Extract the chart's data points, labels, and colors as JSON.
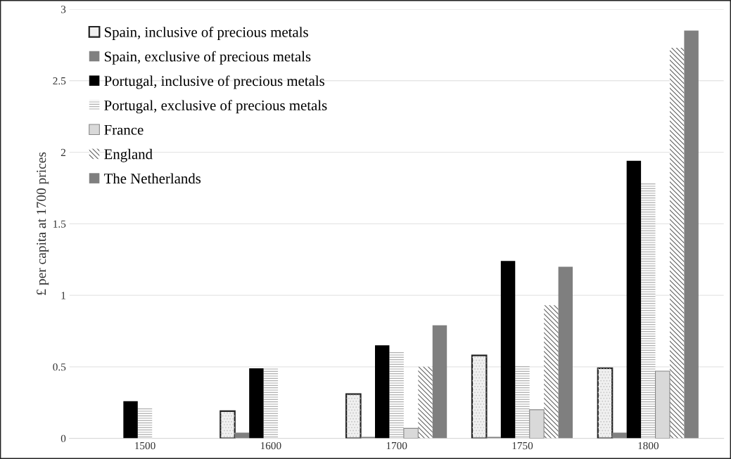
{
  "chart_data": {
    "type": "bar",
    "ylabel": "£ per capita at 1700 prices",
    "categories": [
      "1500",
      "1600",
      "1700",
      "1750",
      "1800"
    ],
    "series": [
      {
        "name": "Spain, inclusive of precious metals",
        "color": "#f0f0f0",
        "values": [
          null,
          0.19,
          0.31,
          0.58,
          0.49
        ]
      },
      {
        "name": "Spain, exclusive of precious metals",
        "color": "#808080",
        "values": [
          null,
          0.04,
          0.01,
          0.01,
          0.04
        ]
      },
      {
        "name": "Portugal, inclusive of precious metals",
        "color": "#000000",
        "values": [
          0.26,
          0.49,
          0.65,
          1.24,
          1.94
        ]
      },
      {
        "name": "Portugal, exclusive of precious metals",
        "color": "#b0b0b0",
        "values": [
          0.21,
          0.49,
          0.61,
          0.51,
          1.79
        ]
      },
      {
        "name": "France",
        "color": "#d9d9d9",
        "values": [
          null,
          null,
          0.07,
          0.2,
          0.47
        ]
      },
      {
        "name": "England",
        "color": "#606060",
        "values": [
          null,
          null,
          0.5,
          0.93,
          2.73
        ]
      },
      {
        "name": "The Netherlands",
        "color": "#7f7f7f",
        "values": [
          null,
          null,
          0.79,
          1.2,
          2.85
        ]
      }
    ],
    "ylim": [
      0,
      3
    ],
    "yticks": [
      0,
      0.5,
      1,
      1.5,
      2,
      2.5,
      3
    ],
    "grid": "y",
    "legend": "top left"
  }
}
